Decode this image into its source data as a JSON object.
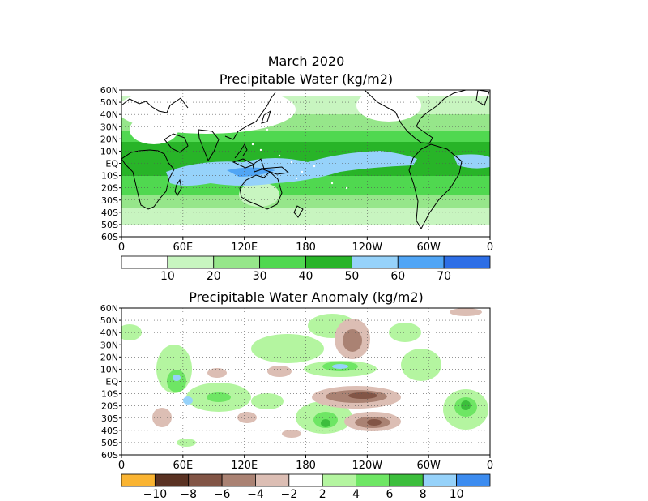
{
  "figure": {
    "title_line1": "March 2020",
    "panel1_title": "Precipitable Water (kg/m2)",
    "panel2_title": "Precipitable Water Anomaly (kg/m2)"
  },
  "map": {
    "lat_labels": [
      "60N",
      "50N",
      "40N",
      "30N",
      "20N",
      "10N",
      "EQ",
      "10S",
      "20S",
      "30S",
      "40S",
      "50S",
      "60S"
    ],
    "lon_labels": [
      "0",
      "60E",
      "120E",
      "180",
      "120W",
      "60W",
      "0"
    ]
  },
  "colorbar1": {
    "levels": [
      "10",
      "20",
      "30",
      "40",
      "50",
      "60",
      "70"
    ],
    "colors": [
      "#ffffff",
      "#c8f5c0",
      "#96e68a",
      "#50d850",
      "#28b428",
      "#96d2fa",
      "#50a5f5",
      "#2d6ee6"
    ]
  },
  "colorbar2": {
    "levels": [
      "−10",
      "−8",
      "−6",
      "−4",
      "−2",
      "2",
      "4",
      "6",
      "8",
      "10"
    ],
    "colors": [
      "#fab432",
      "#5a3223",
      "#825546",
      "#aa8273",
      "#dcbeb4",
      "#ffffff",
      "#b4f5a0",
      "#6ee664",
      "#3cbe3c",
      "#96d2fa",
      "#3c8cf0"
    ]
  }
}
